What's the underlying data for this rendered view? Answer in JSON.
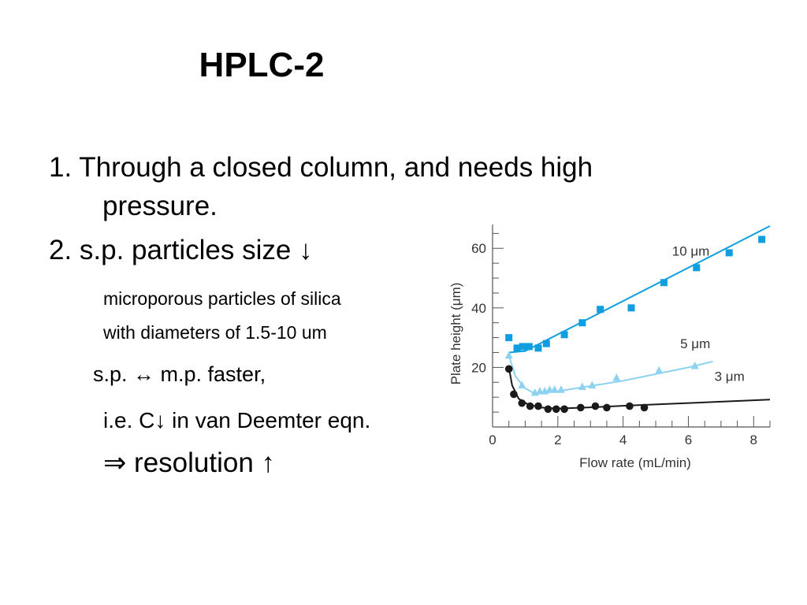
{
  "slide": {
    "title": "HPLC-2",
    "lines": [
      "1. Through a closed column, and needs high",
      "pressure.",
      "2. s.p. particles size ↓",
      "microporous particles of silica",
      "with diameters of 1.5-10 um",
      "s.p. ↔ m.p. faster,",
      "i.e. C↓ in van Deemter eqn.",
      "⇒ resolution ↑"
    ]
  },
  "colors": {
    "series_10um": "#0f9fe0",
    "series_5um": "#8dd3f0",
    "series_3um": "#1a1a1a"
  },
  "chart_data": {
    "type": "scatter",
    "xlabel": "Flow rate (mL/min)",
    "ylabel": "Plate height (μm)",
    "xlim": [
      0,
      8.5
    ],
    "ylim": [
      0,
      68
    ],
    "xticks": [
      0,
      2,
      4,
      6,
      8
    ],
    "yticks": [
      20,
      40,
      60
    ],
    "x_minor_step": 0.5,
    "y_minor_step": 5,
    "grid": false,
    "series": [
      {
        "name": "10 μm",
        "marker": "square",
        "color": "#0f9fe0",
        "points": [
          [
            0.5,
            30
          ],
          [
            0.75,
            26.5
          ],
          [
            0.92,
            27
          ],
          [
            1.05,
            27
          ],
          [
            1.12,
            27
          ],
          [
            1.4,
            26.5
          ],
          [
            1.65,
            28
          ],
          [
            2.2,
            31
          ],
          [
            2.75,
            35
          ],
          [
            3.3,
            39.5
          ],
          [
            4.25,
            40
          ],
          [
            5.25,
            48.5
          ],
          [
            6.25,
            53.5
          ],
          [
            7.25,
            58.5
          ],
          [
            8.25,
            63
          ]
        ],
        "fit": [
          [
            0.5,
            25
          ],
          [
            1,
            25.5
          ],
          [
            8.5,
            67.5
          ]
        ]
      },
      {
        "name": "5 μm",
        "marker": "triangle",
        "color": "#8dd3f0",
        "points": [
          [
            0.5,
            24
          ],
          [
            0.9,
            14
          ],
          [
            1.3,
            11.5
          ],
          [
            1.45,
            12
          ],
          [
            1.6,
            12
          ],
          [
            1.75,
            12.5
          ],
          [
            1.9,
            12.5
          ],
          [
            2.1,
            12.5
          ],
          [
            2.75,
            13.5
          ],
          [
            3.05,
            14
          ],
          [
            3.8,
            16.5
          ],
          [
            5.1,
            19
          ],
          [
            6.2,
            20.5
          ]
        ],
        "fit": [
          [
            0.5,
            24
          ],
          [
            0.7,
            17
          ],
          [
            1,
            13
          ],
          [
            1.3,
            11.2
          ],
          [
            2,
            12
          ],
          [
            4,
            15.5
          ],
          [
            6,
            20
          ],
          [
            6.75,
            22
          ]
        ]
      },
      {
        "name": "3 μm",
        "marker": "circle",
        "color": "#1a1a1a",
        "points": [
          [
            0.5,
            19.5
          ],
          [
            0.65,
            11
          ],
          [
            0.9,
            8
          ],
          [
            1.15,
            7
          ],
          [
            1.4,
            7
          ],
          [
            1.7,
            6
          ],
          [
            1.95,
            6
          ],
          [
            2.2,
            6
          ],
          [
            2.7,
            6.5
          ],
          [
            3.15,
            7
          ],
          [
            3.5,
            6.5
          ],
          [
            4.2,
            7
          ],
          [
            4.65,
            6.5
          ]
        ],
        "fit": [
          [
            0.5,
            20
          ],
          [
            0.6,
            14
          ],
          [
            0.8,
            9.5
          ],
          [
            1.1,
            7.5
          ],
          [
            1.5,
            6.5
          ],
          [
            2,
            6.2
          ],
          [
            3,
            6.6
          ],
          [
            4.2,
            7.2
          ],
          [
            5.5,
            7.8
          ],
          [
            7,
            8.5
          ],
          [
            8.5,
            9.2
          ]
        ]
      }
    ]
  }
}
